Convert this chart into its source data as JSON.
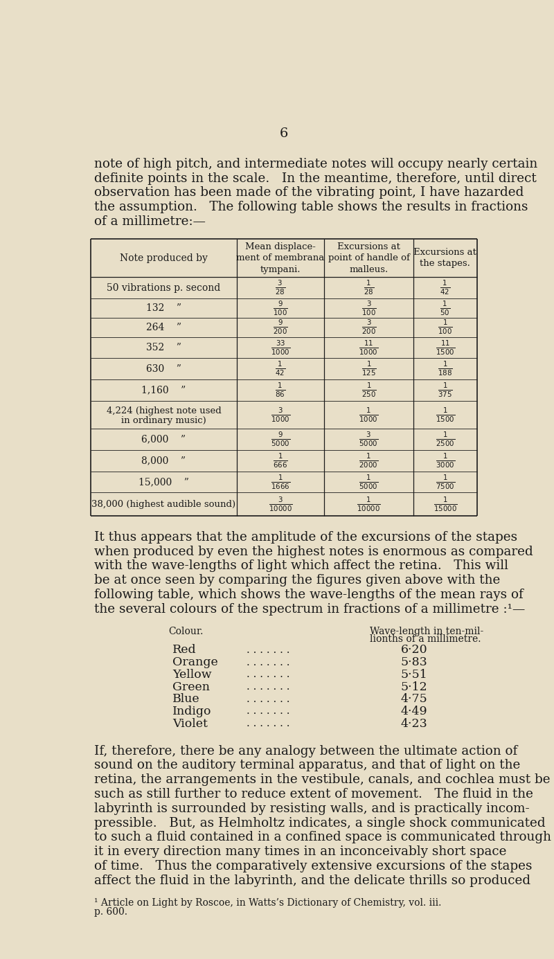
{
  "bg_color": "#e8dfc8",
  "text_color": "#1a1a1a",
  "page_num": "6",
  "intro_text": [
    "note of high pitch, and intermediate notes will occupy nearly certain",
    "definite points in the scale.   In the meantime, therefore, until direct",
    "observation has been made of the vibrating point, I have hazarded",
    "the assumption.   The following table shows the results in fractions",
    "of a millimetre:—"
  ],
  "frac_col1": [
    "$\\frac{3}{28}$",
    "$\\frac{9}{100}$",
    "$\\frac{9}{200}$",
    "$\\frac{33}{1000}$",
    "$\\frac{1}{42}$",
    "$\\frac{1}{86}$",
    "$\\frac{3}{1000}$",
    "$\\frac{9}{5000}$",
    "$\\frac{1}{666}$",
    "$\\frac{1}{1666}$",
    "$\\frac{3}{10000}$"
  ],
  "frac_col2": [
    "$\\frac{1}{28}$",
    "$\\frac{3}{100}$",
    "$\\frac{3}{200}$",
    "$\\frac{11}{1000}$",
    "$\\frac{1}{125}$",
    "$\\frac{1}{250}$",
    "$\\frac{1}{1000}$",
    "$\\frac{3}{5000}$",
    "$\\frac{1}{2000}$",
    "$\\frac{1}{5000}$",
    "$\\frac{1}{10000}$"
  ],
  "frac_col3": [
    "$\\frac{1}{42}$",
    "$\\frac{1}{50}$",
    "$\\frac{1}{100}$",
    "$\\frac{11}{1500}$",
    "$\\frac{1}{188}$",
    "$\\frac{1}{375}$",
    "$\\frac{1}{1500}$",
    "$\\frac{1}{2500}$",
    "$\\frac{1}{3000}$",
    "$\\frac{1}{7500}$",
    "$\\frac{1}{15000}$"
  ],
  "note_entries": [
    "50 vibrations p. second",
    "132    ”",
    "264    ”",
    "352    ”",
    "630    ”",
    "1,160    ”",
    "SPECIAL_4224",
    "6,000    ”",
    "8,000    ”",
    "15,000    ”",
    "SPECIAL_38000"
  ],
  "middle_text": [
    "It thus appears that the amplitude of the excursions of the stapes",
    "when produced by even the highest notes is enormous as compared",
    "with the wave-lengths of light which affect the retina.   This will",
    "be at once seen by comparing the figures given above with the",
    "following table, which shows the wave-lengths of the mean rays of",
    "the several colours of the spectrum in fractions of a millimetre :¹—"
  ],
  "table2_col1_header": "Colour.",
  "table2_col2_header_line1": "Wave-length in ten-mil-",
  "table2_col2_header_line2": "lionths of a millimetre.",
  "table2_rows": [
    [
      "Red",
      "6·20"
    ],
    [
      "Orange",
      "5·83"
    ],
    [
      "Yellow",
      "5·51"
    ],
    [
      "Green",
      "5·12"
    ],
    [
      "Blue",
      "4·75"
    ],
    [
      "Indigo",
      "4·49"
    ],
    [
      "Violet",
      "4·23"
    ]
  ],
  "final_text": [
    "If, therefore, there be any analogy between the ultimate action of",
    "sound on the auditory terminal apparatus, and that of light on the",
    "retina, the arrangements in the vestibule, canals, and cochlea must be",
    "such as still further to reduce extent of movement.   The fluid in the",
    "labyrinth is surrounded by resisting walls, and is practically incom-",
    "pressible.   But, as Helmholtz indicates, a single shock communicated",
    "to such a fluid contained in a confined space is communicated through",
    "it in every direction many times in an inconceivably short space",
    "of time.   Thus the comparatively extensive excursions of the stapes",
    "affect the fluid in the labyrinth, and the delicate thrills so produced"
  ],
  "footnote_line1": "¹ Article on Light by Roscoe, in Watts’s Dictionary of Chemistry, vol. iii.",
  "footnote_line2": "p. 600."
}
